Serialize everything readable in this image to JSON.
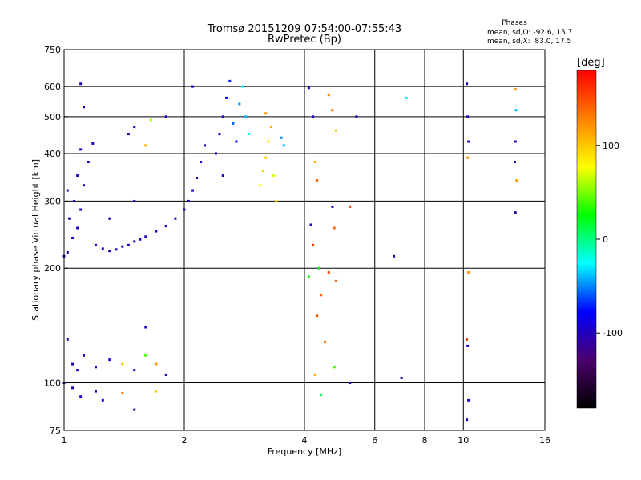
{
  "chart_data": {
    "type": "scatter",
    "title": "Tromsø 20151209 07:54:00-07:55:43",
    "subtitle": "RwPretec (Bp)",
    "stats": {
      "heading": "Phases",
      "line1": "mean, sd,O: -92.6, 15.7",
      "line2": "mean, sd,X:  83.0, 17.5"
    },
    "xlabel": "Frequency [MHz]",
    "ylabel": "Stationary phase Virtual Height [km]",
    "xscale": "log",
    "yscale": "log",
    "xlim": [
      1,
      16
    ],
    "ylim": [
      75,
      750
    ],
    "xticks": [
      1,
      2,
      4,
      6,
      8,
      10,
      16
    ],
    "xticklabels": [
      "1",
      "2",
      "4",
      "6",
      "8",
      "10",
      "16"
    ],
    "xgrid": [
      2,
      4,
      6,
      8,
      10
    ],
    "yticks": [
      75,
      100,
      200,
      300,
      400,
      500,
      600,
      750
    ],
    "yticklabels": [
      "75",
      "100",
      "200",
      "300",
      "400",
      "500",
      "600",
      "750"
    ],
    "ygrid": [
      100,
      200,
      300,
      400,
      500,
      600
    ],
    "grid": true,
    "colorbar": {
      "label": "[deg]",
      "ticks": [
        100,
        0,
        -100
      ],
      "ticklabels": [
        "100",
        "0",
        "-100"
      ],
      "range": [
        -180,
        180
      ],
      "colors": [
        "#000000",
        "#4b006e",
        "#0000ff",
        "#00ffff",
        "#00ff00",
        "#ffff00",
        "#ff8000",
        "#ff0000"
      ]
    },
    "series": [
      {
        "points": [
          [
            1.0,
            215,
            -100
          ],
          [
            1.02,
            220,
            -105
          ],
          [
            1.05,
            240,
            -98
          ],
          [
            1.08,
            255,
            -102
          ],
          [
            1.03,
            270,
            -110
          ],
          [
            1.1,
            285,
            -95
          ],
          [
            1.06,
            300,
            -100
          ],
          [
            1.02,
            320,
            -108
          ],
          [
            1.12,
            330,
            -99
          ],
          [
            1.08,
            350,
            -103
          ],
          [
            1.15,
            380,
            -97
          ],
          [
            1.1,
            410,
            -100
          ],
          [
            1.18,
            425,
            -102
          ],
          [
            1.2,
            230,
            -96
          ],
          [
            1.25,
            225,
            -104
          ],
          [
            1.3,
            222,
            -100
          ],
          [
            1.35,
            224,
            -98
          ],
          [
            1.4,
            228,
            -101
          ],
          [
            1.45,
            230,
            -99
          ],
          [
            1.5,
            235,
            -100
          ],
          [
            1.55,
            238,
            -97
          ],
          [
            1.6,
            242,
            -103
          ],
          [
            1.7,
            250,
            -100
          ],
          [
            1.8,
            258,
            -96
          ],
          [
            1.9,
            270,
            -99
          ],
          [
            2.0,
            285,
            -101
          ],
          [
            2.05,
            300,
            -100
          ],
          [
            2.1,
            320,
            -97
          ],
          [
            2.15,
            345,
            -102
          ],
          [
            2.2,
            380,
            -100
          ],
          [
            2.25,
            420,
            -98
          ],
          [
            2.1,
            600,
            -100
          ],
          [
            2.4,
            400,
            -95
          ],
          [
            2.45,
            450,
            -88
          ],
          [
            2.5,
            500,
            -92
          ],
          [
            2.55,
            560,
            -80
          ],
          [
            2.6,
            620,
            -70
          ],
          [
            2.5,
            350,
            -98
          ],
          [
            2.65,
            480,
            -60
          ],
          [
            2.7,
            430,
            -75
          ],
          [
            2.75,
            540,
            -45
          ],
          [
            2.8,
            600,
            -30
          ],
          [
            2.85,
            500,
            -40
          ],
          [
            2.9,
            450,
            -25
          ],
          [
            3.1,
            330,
            80
          ],
          [
            3.15,
            360,
            95
          ],
          [
            3.2,
            390,
            100
          ],
          [
            3.25,
            430,
            85
          ],
          [
            3.3,
            470,
            110
          ],
          [
            3.2,
            510,
            120
          ],
          [
            3.35,
            350,
            70
          ],
          [
            3.4,
            300,
            90
          ],
          [
            3.5,
            440,
            -50
          ],
          [
            3.55,
            420,
            -40
          ],
          [
            1.3,
            270,
            -100
          ],
          [
            1.5,
            300,
            -95
          ],
          [
            1.6,
            420,
            110
          ],
          [
            1.65,
            490,
            60
          ],
          [
            1.45,
            450,
            -100
          ],
          [
            1.02,
            130,
            -100
          ],
          [
            1.05,
            112,
            -102
          ],
          [
            1.08,
            108,
            -98
          ],
          [
            1.12,
            118,
            -100
          ],
          [
            1.2,
            110,
            -95
          ],
          [
            1.3,
            115,
            -90
          ],
          [
            1.4,
            112,
            100
          ],
          [
            1.5,
            108,
            -100
          ],
          [
            1.6,
            118,
            40
          ],
          [
            1.7,
            112,
            120
          ],
          [
            1.8,
            105,
            -100
          ],
          [
            1.0,
            100,
            -105
          ],
          [
            1.05,
            97,
            -100
          ],
          [
            1.1,
            92,
            -98
          ],
          [
            1.2,
            95,
            -100
          ],
          [
            1.25,
            90,
            -96
          ],
          [
            1.4,
            94,
            130
          ],
          [
            1.5,
            85,
            -100
          ],
          [
            1.6,
            140,
            -100
          ],
          [
            1.7,
            95,
            100
          ],
          [
            1.1,
            610,
            -100
          ],
          [
            1.12,
            530,
            -98
          ],
          [
            1.5,
            470,
            -100
          ],
          [
            1.8,
            500,
            -100
          ],
          [
            4.1,
            595,
            -100
          ],
          [
            4.2,
            500,
            -95
          ],
          [
            4.25,
            380,
            110
          ],
          [
            4.3,
            340,
            140
          ],
          [
            4.15,
            260,
            -100
          ],
          [
            4.2,
            230,
            160
          ],
          [
            4.35,
            200,
            20
          ],
          [
            4.1,
            190,
            30
          ],
          [
            4.4,
            170,
            140
          ],
          [
            4.3,
            150,
            150
          ],
          [
            4.5,
            128,
            130
          ],
          [
            4.25,
            105,
            110
          ],
          [
            4.4,
            93,
            10
          ],
          [
            4.6,
            570,
            130
          ],
          [
            4.7,
            520,
            140
          ],
          [
            4.8,
            460,
            100
          ],
          [
            4.7,
            290,
            -100
          ],
          [
            4.75,
            255,
            140
          ],
          [
            4.6,
            195,
            150
          ],
          [
            4.8,
            185,
            140
          ],
          [
            4.75,
            110,
            40
          ],
          [
            5.2,
            100,
            -100
          ],
          [
            5.4,
            500,
            -100
          ],
          [
            5.2,
            290,
            150
          ],
          [
            6.7,
            215,
            -110
          ],
          [
            7.0,
            103,
            -100
          ],
          [
            7.2,
            560,
            -30
          ],
          [
            10.2,
            610,
            -100
          ],
          [
            10.25,
            500,
            -100
          ],
          [
            10.3,
            430,
            -100
          ],
          [
            10.25,
            390,
            120
          ],
          [
            10.3,
            195,
            120
          ],
          [
            10.2,
            130,
            160
          ],
          [
            10.25,
            125,
            -100
          ],
          [
            10.3,
            90,
            -100
          ],
          [
            10.2,
            80,
            -100
          ],
          [
            13.5,
            590,
            120
          ],
          [
            13.55,
            520,
            -40
          ],
          [
            13.5,
            430,
            -100
          ],
          [
            13.45,
            380,
            -100
          ],
          [
            13.6,
            340,
            120
          ],
          [
            13.5,
            280,
            -100
          ]
        ]
      }
    ]
  }
}
